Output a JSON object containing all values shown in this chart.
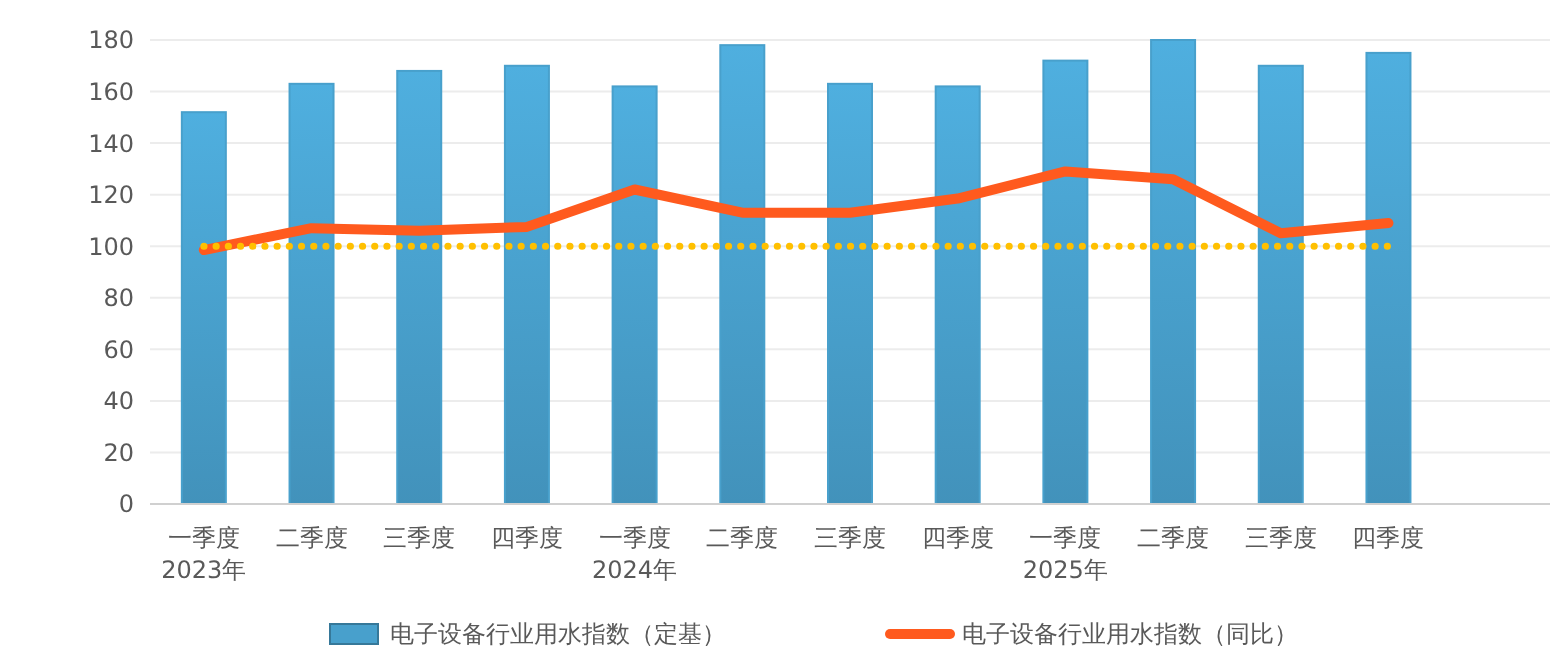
{
  "chart_data": {
    "type": "bar",
    "categories": [
      "一季度\n2023年",
      "二季度",
      "三季度",
      "四季度",
      "一季度\n2024年",
      "二季度",
      "三季度",
      "四季度",
      "一季度\n2025年",
      "二季度",
      "三季度",
      "四季度",
      null
    ],
    "series": [
      {
        "name": "电子设备行业用水指数（定基）",
        "color": "#48a0cc",
        "values": [
          152,
          163,
          168,
          170,
          162,
          178,
          163,
          162,
          172,
          180,
          170,
          175,
          null
        ]
      },
      {
        "name": "电子设备行业用水指数（同比）",
        "type": "line",
        "color": "#ff5a1e",
        "values": [
          98.5,
          107,
          106,
          107.5,
          122,
          113,
          113,
          118.5,
          129,
          126,
          105,
          109,
          null
        ]
      },
      {
        "type": "line",
        "color": "#ffc000",
        "line_style": "dotted",
        "values": [
          100,
          100,
          100,
          100,
          100,
          100,
          100,
          100,
          100,
          100,
          100,
          100,
          null
        ]
      }
    ],
    "ylim": [
      0,
      180
    ],
    "yticks": [
      0,
      20,
      40,
      60,
      80,
      100,
      120,
      140,
      160,
      180
    ],
    "grid": "y",
    "legend": "bottom"
  }
}
